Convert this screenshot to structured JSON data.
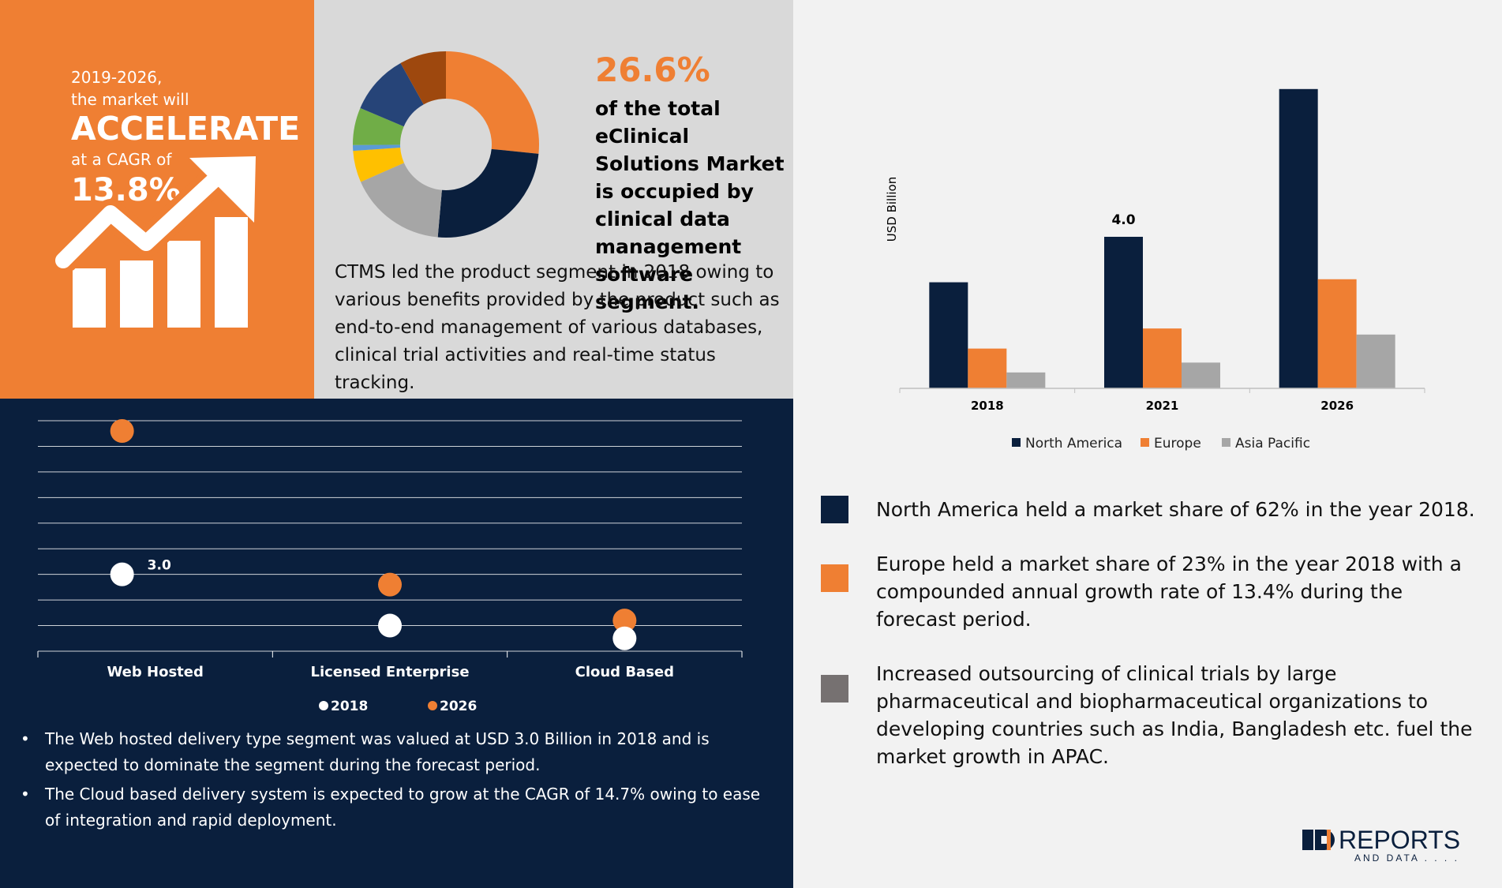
{
  "orange_panel": {
    "line1": "2019-2026,",
    "line2": "the market will",
    "headline": "ACCELERATE",
    "line4": "at a CAGR of",
    "cagr": "13.8%",
    "icon": "growth-chart-arrow-icon"
  },
  "donut_panel": {
    "share_pct": "26.6%",
    "share_text": "of the total eClinical Solutions Market is occupied by clinical data management software segment.",
    "ctms_text": "CTMS led the product segment in 2018 owing to various benefits provided by the product such as end-to-end management of various databases, clinical trial activities and real-time status tracking."
  },
  "chart_data": [
    {
      "type": "pie",
      "title": "",
      "donut": true,
      "values": [
        26.6,
        24.8,
        17.0,
        5.5,
        1.0,
        6.5,
        10.5,
        8.1
      ],
      "colors": [
        "#ef7f33",
        "#0a1f3d",
        "#a6a6a6",
        "#ffc000",
        "#5b9bd5",
        "#70ad47",
        "#264478",
        "#9e480e"
      ]
    },
    {
      "type": "scatter",
      "title": "",
      "categories": [
        "Web Hosted",
        "Licensed Enterprise",
        "Cloud Based"
      ],
      "series": [
        {
          "name": "2018",
          "values": [
            3.0,
            1.0,
            0.5
          ],
          "color": "#ffffff"
        },
        {
          "name": "2026",
          "values": [
            8.6,
            2.6,
            1.2
          ],
          "color": "#ef7f33"
        }
      ],
      "data_labels": [
        {
          "category": "Web Hosted",
          "series": "2018",
          "text": "3.0"
        }
      ],
      "ylim": [
        0,
        9
      ],
      "grid": true,
      "legend": "bottom"
    },
    {
      "type": "bar",
      "title": "",
      "categories": [
        "2018",
        "2021",
        "2026"
      ],
      "series": [
        {
          "name": "North America",
          "values": [
            2.8,
            4.0,
            7.9
          ],
          "color": "#0a1f3d"
        },
        {
          "name": "Europe",
          "values": [
            1.05,
            1.58,
            2.88
          ],
          "color": "#ef7f33"
        },
        {
          "name": "Asia Pacific",
          "values": [
            0.42,
            0.68,
            1.42
          ],
          "color": "#a6a6a6"
        }
      ],
      "data_labels": [
        {
          "category": "2021",
          "series": "North America",
          "text": "4.0"
        }
      ],
      "xlabel": "",
      "ylabel": "USD Billion",
      "ylim": [
        0,
        8.5
      ],
      "grid": false,
      "legend": "bottom"
    }
  ],
  "dot_bullets": [
    "The Web hosted delivery type segment was valued at USD 3.0 Billion in 2018 and is expected to dominate the segment during the forecast period.",
    "The Cloud based delivery system is expected to grow at the CAGR of 14.7% owing to ease of integration and rapid deployment."
  ],
  "region_legend": [
    {
      "color": "#0a1f3d",
      "text": "North America held a market share of 62% in the year 2018."
    },
    {
      "color": "#ef7f33",
      "text": "Europe held a market share of 23% in the year 2018 with a compounded annual growth rate of 13.4% during the forecast period."
    },
    {
      "color": "#767171",
      "text": "Increased outsourcing of clinical trials by large pharmaceutical and biopharmaceutical organizations to developing countries such as India, Bangladesh etc. fuel the market growth in APAC."
    }
  ],
  "logo": {
    "brand": "REPORTS",
    "sub": "AND DATA . . . .",
    "icon": "reports-and-data-logo-icon"
  }
}
